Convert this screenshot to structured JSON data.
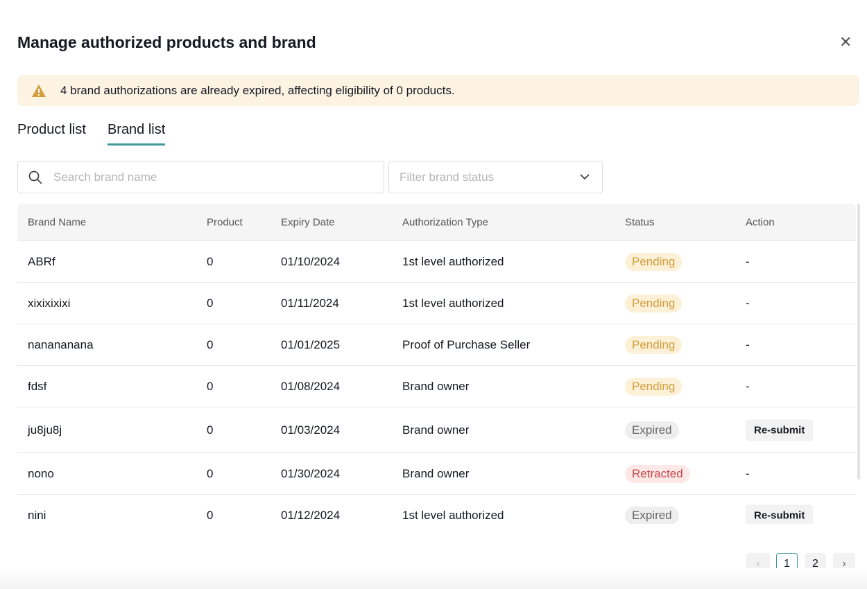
{
  "title": "Manage authorized products and brand",
  "alert": "4 brand authorizations are already expired, affecting eligibility of 0 products.",
  "tabs": [
    "Product list",
    "Brand list"
  ],
  "active_tab": "Brand list",
  "search": {
    "placeholder": "Search brand name",
    "value": ""
  },
  "filter": {
    "placeholder": "Filter brand status"
  },
  "columns": [
    "Brand Name",
    "Product",
    "Expiry Date",
    "Authorization Type",
    "Status",
    "Action"
  ],
  "rows": [
    {
      "brand": "ABRf",
      "product": "0",
      "expiry": "01/10/2024",
      "type": "1st level authorized",
      "status": "Pending",
      "action": "-"
    },
    {
      "brand": "xixixixixi",
      "product": "0",
      "expiry": "01/11/2024",
      "type": "1st level authorized",
      "status": "Pending",
      "action": "-"
    },
    {
      "brand": "nanananana",
      "product": "0",
      "expiry": "01/01/2025",
      "type": "Proof of Purchase Seller",
      "status": "Pending",
      "action": "-"
    },
    {
      "brand": "fdsf",
      "product": "0",
      "expiry": "01/08/2024",
      "type": "Brand owner",
      "status": "Pending",
      "action": "-"
    },
    {
      "brand": "ju8ju8j",
      "product": "0",
      "expiry": "01/03/2024",
      "type": "Brand owner",
      "status": "Expired",
      "action": "Re-submit"
    },
    {
      "brand": "nono",
      "product": "0",
      "expiry": "01/30/2024",
      "type": "Brand owner",
      "status": "Retracted",
      "action": "-"
    },
    {
      "brand": "nini",
      "product": "0",
      "expiry": "01/12/2024",
      "type": "1st level authorized",
      "status": "Expired",
      "action": "Re-submit"
    }
  ],
  "pagination": {
    "pages": [
      "1",
      "2"
    ],
    "current": "1"
  },
  "colors": {
    "accent": "#3f9a96",
    "warning": "#d39e3e",
    "danger": "#c64a4a",
    "alert_bg": "#fcf3e3"
  }
}
